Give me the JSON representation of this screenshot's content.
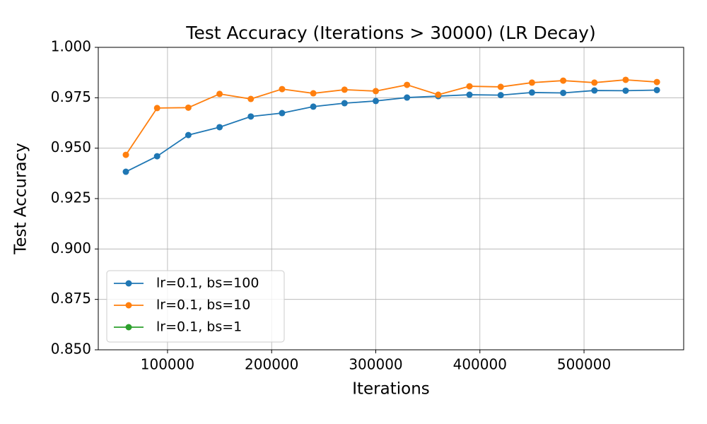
{
  "chart_data": {
    "type": "line",
    "title": "Test Accuracy (Iterations > 30000) (LR Decay)",
    "xlabel": "Iterations",
    "ylabel": "Test Accuracy",
    "x": [
      60000,
      90000,
      120000,
      150000,
      180000,
      210000,
      240000,
      270000,
      300000,
      330000,
      360000,
      390000,
      420000,
      450000,
      480000,
      510000,
      540000,
      570000
    ],
    "series": [
      {
        "name": "lr=0.1, bs=100",
        "color": "#1f77b4",
        "values": [
          0.9383,
          0.946,
          0.9565,
          0.9604,
          0.9657,
          0.9674,
          0.9706,
          0.9723,
          0.9734,
          0.9751,
          0.9758,
          0.9765,
          0.9763,
          0.9776,
          0.9774,
          0.9786,
          0.9785,
          0.9788
        ]
      },
      {
        "name": "lr=0.1, bs=10",
        "color": "#ff7f0e",
        "values": [
          0.9467,
          0.9699,
          0.9701,
          0.9769,
          0.9744,
          0.9793,
          0.9772,
          0.979,
          0.9783,
          0.9814,
          0.9765,
          0.9807,
          0.9804,
          0.9825,
          0.9835,
          0.9825,
          0.9839,
          0.9828
        ]
      },
      {
        "name": "lr=0.1, bs=1",
        "color": "#2ca02c",
        "values": [
          null,
          null,
          null,
          null,
          null,
          null,
          null,
          null,
          null,
          null,
          null,
          null,
          null,
          null,
          null,
          null,
          null,
          null
        ]
      }
    ],
    "xlim": [
      33500,
      595700
    ],
    "ylim": [
      0.85,
      1.0
    ],
    "xticks": [
      100000,
      200000,
      300000,
      400000,
      500000
    ],
    "yticks": [
      {
        "value": 0.85,
        "label": "0.850"
      },
      0.875,
      {
        "value": 0.9,
        "label": "0.900"
      },
      0.925,
      {
        "value": 0.95,
        "label": "0.950"
      },
      0.975,
      {
        "value": 1.0,
        "label": "1.000"
      }
    ],
    "grid": true,
    "legend": "lower left"
  }
}
